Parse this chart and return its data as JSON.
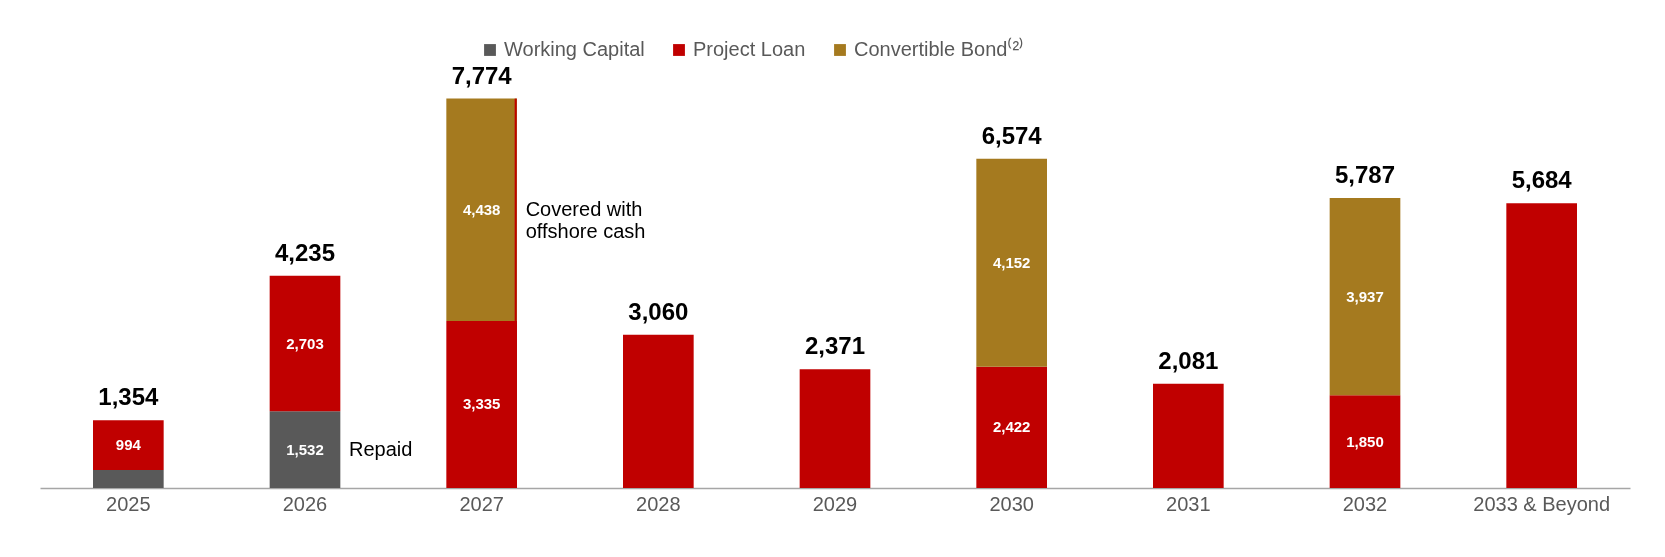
{
  "chart_data": {
    "type": "bar",
    "stacked": true,
    "legend": "top",
    "categories": [
      "2025",
      "2026",
      "2027",
      "2028",
      "2029",
      "2030",
      "2031",
      "2032",
      "2033 & Beyond"
    ],
    "series": [
      {
        "name": "Working Capital",
        "color": "#595959",
        "values": [
          360,
          1532,
          null,
          null,
          null,
          null,
          null,
          null,
          null
        ],
        "value_labels": [
          null,
          "1,532",
          null,
          null,
          null,
          null,
          null,
          null,
          null
        ]
      },
      {
        "name": "Project Loan",
        "color": "#c00000",
        "values": [
          994,
          2703,
          3335,
          3060,
          2371,
          2422,
          2081,
          1850,
          5684
        ],
        "value_labels": [
          "994",
          "2,703",
          "3,335",
          null,
          null,
          "2,422",
          null,
          "1,850",
          null
        ]
      },
      {
        "name": "Convertible Bond⁽²⁾",
        "color": "#a57a1f",
        "values": [
          null,
          null,
          4438,
          null,
          null,
          4152,
          null,
          3937,
          null
        ],
        "value_labels": [
          null,
          null,
          "4,438",
          null,
          null,
          "4,152",
          null,
          "3,937",
          null
        ]
      }
    ],
    "totals": [
      "1,354",
      "4,235",
      "7,774",
      "3,060",
      "2,371",
      "6,574",
      "2,081",
      "5,787",
      "5,684"
    ],
    "annotations": [
      "Repaid",
      "Covered with\noffshore cash"
    ]
  }
}
